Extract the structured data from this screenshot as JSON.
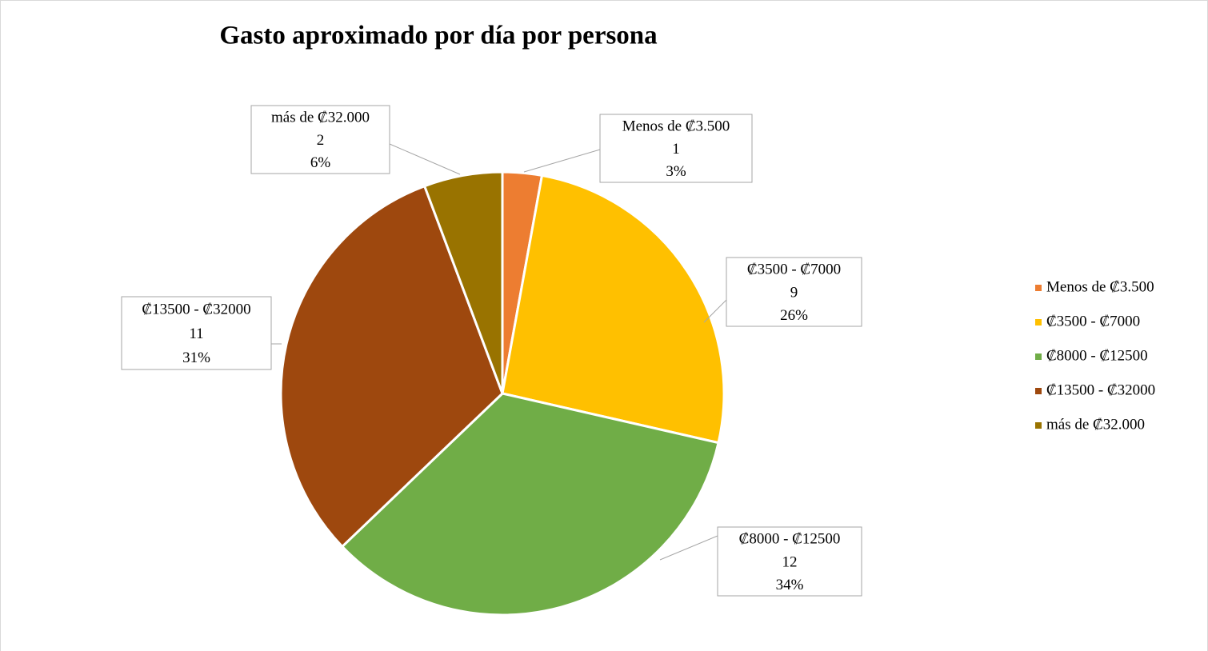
{
  "chart_data": {
    "type": "pie",
    "title": "Gasto aproximado por día por persona",
    "categories": [
      "Menos de ₡3.500",
      "₡3500 - ₡7000",
      "₡8000 - ₡12500",
      "₡13500 - ₡32000",
      "más de ₡32.000"
    ],
    "values": [
      1,
      9,
      12,
      11,
      2
    ],
    "percent_labels": [
      "3%",
      "26%",
      "34%",
      "31%",
      "6%"
    ],
    "colors": [
      "#ED7D31",
      "#FFC000",
      "#70AD47",
      "#9E480E",
      "#997300"
    ],
    "legend": "right"
  }
}
